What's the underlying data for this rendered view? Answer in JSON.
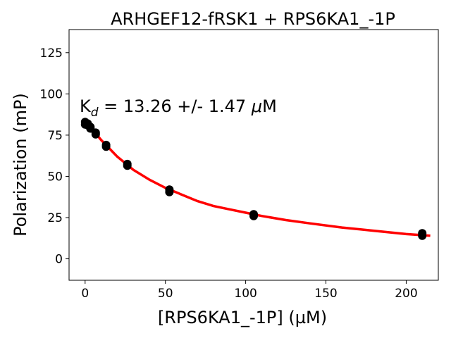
{
  "chart_data": {
    "type": "scatter",
    "title": "ARHGEF12-fRSK1 + RPS6KA1_-1P",
    "xlabel": "[RPS6KA1_-1P] (µM)",
    "ylabel": "Polarization (mP)",
    "xlim": [
      -10,
      220
    ],
    "ylim": [
      -13,
      139
    ],
    "xticks": [
      0,
      50,
      100,
      150,
      200
    ],
    "yticks": [
      0,
      25,
      50,
      75,
      100,
      125
    ],
    "grid": false,
    "annotation": {
      "prefix": "K",
      "subscript": "d",
      "text": " = 13.26 +/- 1.47 ",
      "unit_symbol": "μ",
      "unit": "M"
    },
    "points": [
      {
        "x": 0,
        "y": 83
      },
      {
        "x": 0,
        "y": 81.5
      },
      {
        "x": 1.6,
        "y": 82
      },
      {
        "x": 1.6,
        "y": 81
      },
      {
        "x": 3.3,
        "y": 80
      },
      {
        "x": 3.3,
        "y": 79
      },
      {
        "x": 6.6,
        "y": 76.5
      },
      {
        "x": 6.6,
        "y": 75.5
      },
      {
        "x": 13.1,
        "y": 69
      },
      {
        "x": 13.1,
        "y": 68
      },
      {
        "x": 26.3,
        "y": 57.5
      },
      {
        "x": 26.3,
        "y": 56.5
      },
      {
        "x": 52.5,
        "y": 42
      },
      {
        "x": 52.5,
        "y": 40.5
      },
      {
        "x": 105,
        "y": 27
      },
      {
        "x": 105,
        "y": 26
      },
      {
        "x": 210,
        "y": 15.5
      },
      {
        "x": 210,
        "y": 14
      }
    ],
    "fit": {
      "type": "line",
      "color": "#ff0000",
      "x": [
        0,
        5,
        10,
        15,
        20,
        25,
        30,
        40,
        50,
        60,
        70,
        80,
        90,
        100,
        110,
        125,
        140,
        160,
        180,
        200,
        215
      ],
      "y": [
        83,
        78,
        72,
        67,
        62,
        58,
        54,
        48,
        43,
        39,
        35,
        32,
        30,
        28,
        26,
        23.5,
        21.5,
        19,
        17,
        15,
        14
      ]
    },
    "point_color": "#000000"
  }
}
